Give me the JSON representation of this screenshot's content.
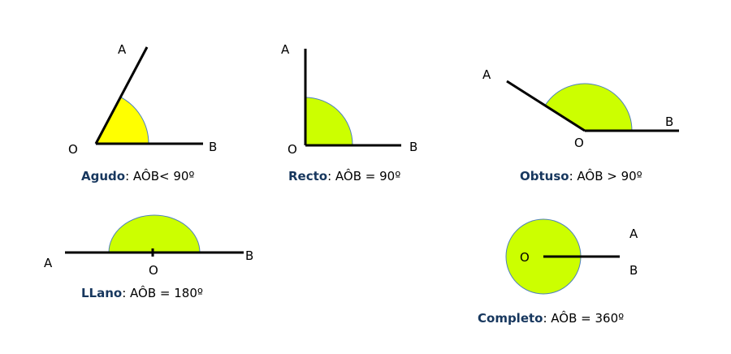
{
  "angles": [
    {
      "name": "Agudo",
      "formula": ": AÔB< 90º",
      "labels": [
        "A",
        "O",
        "B"
      ]
    },
    {
      "name": "Recto",
      "formula": ": AÔB = 90º",
      "labels": [
        "A",
        "O",
        "B"
      ]
    },
    {
      "name": "Obtuso",
      "formula": ": AÔB  > 90º",
      "labels": [
        "A",
        "O",
        "B"
      ]
    },
    {
      "name": "LLano",
      "formula": ": AÔB = 180º",
      "labels": [
        "A",
        "O",
        "B"
      ]
    },
    {
      "name": "Completo",
      "formula": ": AÔB = 360º",
      "labels": [
        "A",
        "O",
        "B"
      ]
    }
  ]
}
